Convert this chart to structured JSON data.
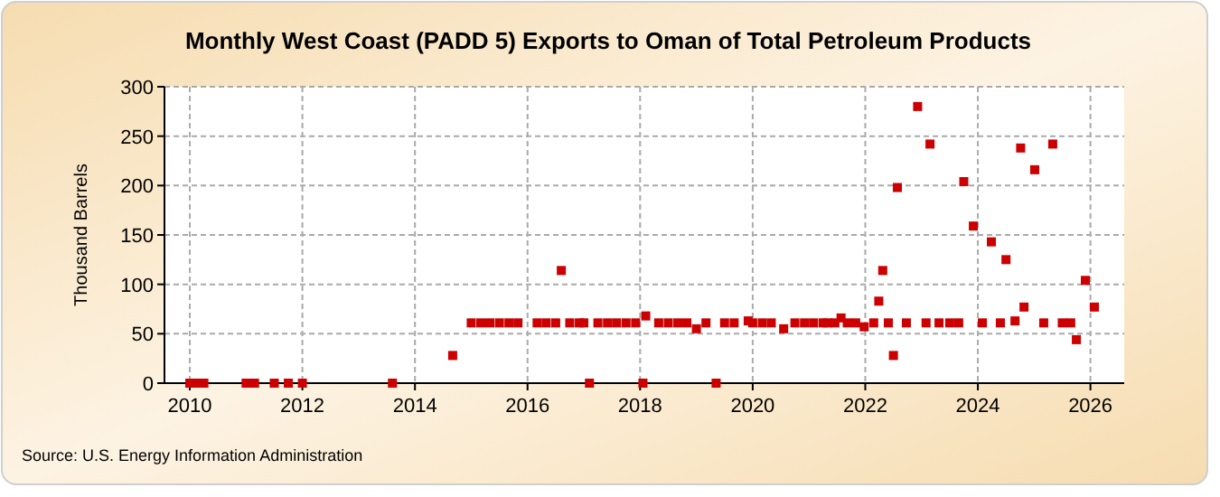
{
  "chart_data": {
    "type": "scatter",
    "title": "Monthly West Coast (PADD 5) Exports to Oman of Total Petroleum Products",
    "ylabel": "Thousand Barrels",
    "annotations": [
      "Source: U.S. Energy Information Administration"
    ],
    "xlim": [
      2009.55,
      2026.6
    ],
    "xticks": [
      2010,
      2012,
      2014,
      2016,
      2018,
      2020,
      2022,
      2024,
      2026
    ],
    "ylim": [
      0,
      300
    ],
    "yticks": [
      0,
      50,
      100,
      150,
      200,
      250,
      300
    ],
    "grid": true,
    "marker": "square",
    "series": [
      {
        "color": "#cc0000",
        "x": [
          2010.0,
          2010.08,
          2010.17,
          2010.25,
          2011.0,
          2011.15,
          2011.5,
          2011.75,
          2012.0,
          2013.6,
          2014.67,
          2015.0,
          2015.17,
          2015.33,
          2015.5,
          2015.67,
          2015.83,
          2016.17,
          2016.33,
          2016.5,
          2016.6,
          2016.75,
          2016.92,
          2017.0,
          2017.1,
          2017.25,
          2017.42,
          2017.58,
          2017.75,
          2017.92,
          2018.05,
          2018.1,
          2018.33,
          2018.5,
          2018.67,
          2018.83,
          2019.0,
          2019.17,
          2019.35,
          2019.5,
          2019.67,
          2019.92,
          2020.0,
          2020.17,
          2020.33,
          2020.55,
          2020.75,
          2020.92,
          2021.08,
          2021.25,
          2021.33,
          2021.46,
          2021.57,
          2021.68,
          2021.83,
          2021.98,
          2022.15,
          2022.24,
          2022.31,
          2022.41,
          2022.5,
          2022.57,
          2022.73,
          2022.93,
          2023.08,
          2023.15,
          2023.31,
          2023.5,
          2023.66,
          2023.75,
          2023.92,
          2024.08,
          2024.24,
          2024.4,
          2024.5,
          2024.66,
          2024.76,
          2024.82,
          2025.01,
          2025.17,
          2025.33,
          2025.5,
          2025.65,
          2025.75,
          2025.91,
          2026.07
        ],
        "values": [
          0,
          0,
          0,
          0,
          0,
          0,
          0,
          0,
          0,
          0,
          28,
          61,
          61,
          61,
          61,
          61,
          61,
          61,
          61,
          61,
          114,
          61,
          61,
          61,
          0,
          61,
          61,
          61,
          61,
          61,
          0,
          68,
          61,
          61,
          61,
          61,
          55,
          61,
          0,
          61,
          61,
          63,
          61,
          61,
          61,
          55,
          61,
          61,
          61,
          61,
          61,
          61,
          66,
          61,
          61,
          57,
          61,
          83,
          114,
          61,
          28,
          198,
          61,
          280,
          61,
          242,
          61,
          61,
          61,
          204,
          159,
          61,
          143,
          61,
          125,
          63,
          238,
          77,
          216,
          61,
          242,
          61,
          61,
          44,
          104,
          77
        ]
      }
    ]
  }
}
